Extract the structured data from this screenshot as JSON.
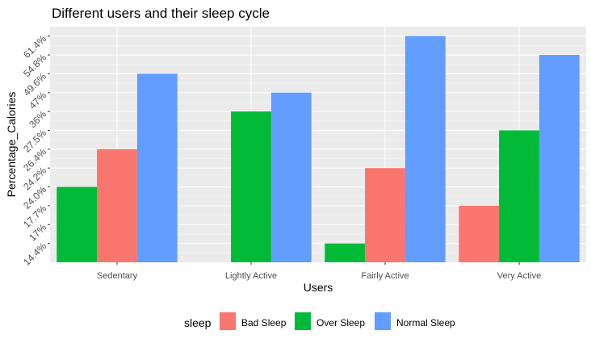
{
  "chart_data": {
    "type": "bar",
    "title": "Different users and their sleep cycle",
    "xlabel": "Users",
    "ylabel": "Percentage_Calories",
    "categories": [
      "Sedentary",
      "Lightly Active",
      "Fairly Active",
      "Very Active"
    ],
    "y_ticks": [
      "14.4%",
      "17%",
      "17.7%",
      "24.0%",
      "24.2%",
      "26.4%",
      "27.5%",
      "36%",
      "47%",
      "49.6%",
      "54.8%",
      "61.4%"
    ],
    "ylim": [
      0,
      12.5
    ],
    "grid": true,
    "legend": {
      "title": "sleep",
      "position": "bottom"
    },
    "series": [
      {
        "name": "Bad Sleep",
        "color": "#F8766D",
        "values": [
          6,
          null,
          5,
          3
        ]
      },
      {
        "name": "Over Sleep",
        "color": "#00BA38",
        "values": [
          4,
          8,
          1,
          7
        ]
      },
      {
        "name": "Normal Sleep",
        "color": "#619CFF",
        "values": [
          10,
          9,
          12,
          11
        ]
      }
    ],
    "x_order": [
      [
        "Over Sleep",
        "Bad Sleep",
        "Normal Sleep"
      ],
      [
        "Bad Sleep",
        "Over Sleep",
        "Normal Sleep"
      ],
      [
        "Over Sleep",
        "Bad Sleep",
        "Normal Sleep"
      ],
      [
        "Bad Sleep",
        "Over Sleep",
        "Normal Sleep"
      ]
    ]
  }
}
